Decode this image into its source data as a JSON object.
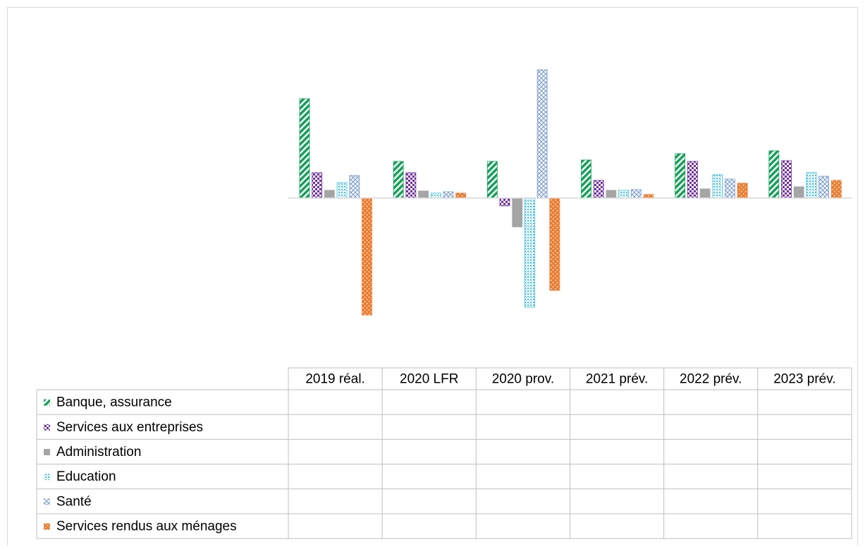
{
  "chart_data": {
    "type": "bar",
    "categories": [
      "2019 réal.",
      "2020 LFR",
      "2020 prov.",
      "2021 prév.",
      "2022 prév.",
      "2023 prév."
    ],
    "series": [
      {
        "name": "Banque, assurance",
        "color": "#16a05a",
        "pattern": "diagonal",
        "values": [
          7.05,
          2.6,
          2.6,
          2.7,
          3.15,
          3.35
        ]
      },
      {
        "name": "Services aux entreprises",
        "color": "#7030a0",
        "pattern": "checker",
        "values": [
          1.8,
          1.8,
          -0.55,
          1.25,
          2.6,
          2.65
        ]
      },
      {
        "name": "Administration",
        "color": "#a5a5a5",
        "pattern": "solid",
        "values": [
          0.55,
          0.5,
          -2.05,
          0.55,
          0.65,
          0.8
        ]
      },
      {
        "name": "Education",
        "color": "#3fbfe0",
        "pattern": "dots",
        "values": [
          1.1,
          0.35,
          -7.75,
          0.55,
          1.65,
          1.8
        ]
      },
      {
        "name": "Santé",
        "color": "#7f9fd0",
        "pattern": "diamond",
        "values": [
          1.6,
          0.45,
          9.1,
          0.6,
          1.35,
          1.55
        ]
      },
      {
        "name": "Services rendus aux ménages",
        "color": "#ed7d31",
        "pattern": "holes",
        "values": [
          -8.3,
          0.35,
          -6.55,
          0.25,
          1.05,
          1.25
        ]
      }
    ],
    "ylim": [
      -9,
      11
    ]
  }
}
